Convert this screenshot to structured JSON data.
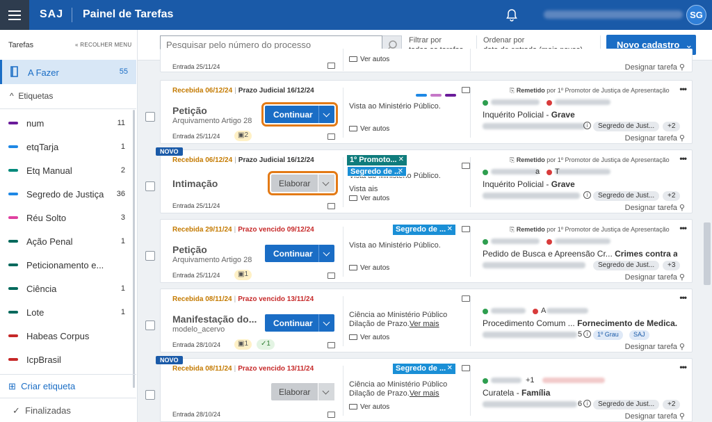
{
  "topbar": {
    "logo": "SAJ",
    "title": "Painel de Tarefas",
    "avatar": "SG"
  },
  "sidebar": {
    "header": "Tarefas",
    "collapse": "RECOLHER MENU",
    "afazer": {
      "label": "A Fazer",
      "count": "55"
    },
    "etiquetas_label": "Etiquetas",
    "tags": [
      {
        "name": "num",
        "count": "11",
        "color": "#6a1b9a"
      },
      {
        "name": "etqTarja",
        "count": "1",
        "color": "#1e88e5"
      },
      {
        "name": "Etq Manual",
        "count": "2",
        "color": "#00897b"
      },
      {
        "name": "Segredo de Justiça",
        "count": "36",
        "color": "#1e88e5"
      },
      {
        "name": "Réu Solto",
        "count": "3",
        "color": "#e040a0"
      },
      {
        "name": "Ação Penal",
        "count": "1",
        "color": "#00695c"
      },
      {
        "name": "Peticionamento e...",
        "count": "",
        "color": "#00695c"
      },
      {
        "name": "Ciência",
        "count": "1",
        "color": "#00695c"
      },
      {
        "name": "Lote",
        "count": "1",
        "color": "#00695c"
      },
      {
        "name": "Habeas Corpus",
        "count": "",
        "color": "#c62828"
      },
      {
        "name": "IcpBrasil",
        "count": "",
        "color": "#c62828"
      }
    ],
    "criar": "Criar etiqueta",
    "finalizadas": "Finalizadas"
  },
  "toolbar": {
    "search_placeholder": "Pesquisar pelo número do processo",
    "filter_label": "Filtrar por",
    "filter_value": "todas as tarefas",
    "order_label": "Ordenar por",
    "order_value": "data de entrada (mais novas)",
    "novo": "Novo cadastro"
  },
  "partial": {
    "entrada": "Entrada 25/11/24",
    "ver": "Ver autos",
    "designar": "Designar tarefa"
  },
  "cards": [
    {
      "recebida": "Recebida 06/12/24",
      "prazo": "Prazo Judicial 16/12/24",
      "tipo": "Petição",
      "sub": "Arquivamento Artigo 28",
      "entrada": "Entrada 25/11/24",
      "badge_y": "2",
      "btn": "Continuar",
      "mov": "Vista ao Ministério Público.",
      "ver": "Ver autos",
      "rem_label": "Remetido",
      "rem_text": " por 1º Promotor de Justiça de Apresentação",
      "classe": "Inquérito Policial - ",
      "assunto": "Grave",
      "chip": "Segredo de Just...",
      "plus": "+2",
      "designar": "Designar tarefa"
    },
    {
      "novo": "NOVO",
      "recebida": "Recebida 06/12/24",
      "prazo": "Prazo Judicial 16/12/24",
      "tipo": "Intimação",
      "entrada": "Entrada 25/11/24",
      "btn": "Elaborar",
      "mov": "Vista ao Ministério Público.",
      "mov2": "Vista ais",
      "ver": "Ver autos",
      "pill1": "1º Promoto...",
      "pill2": "Segredo de ...",
      "rem_label": "Remetido",
      "rem_text": " por 1º Promotor de Justiça de Apresentação",
      "party_tail": "a",
      "party_tail2": "T",
      "classe": "Inquérito Policial - ",
      "assunto": "Grave",
      "chip": "Segredo de Just...",
      "plus": "+2",
      "designar": "Designar tarefa"
    },
    {
      "recebida": "Recebida 29/11/24",
      "prazo": "Prazo vencido 09/12/24",
      "tipo": "Petição",
      "sub": "Arquivamento Artigo 28",
      "entrada": "Entrada 25/11/24",
      "badge_y": "1",
      "btn": "Continuar",
      "mov": "Vista ao Ministério Público.",
      "ver": "Ver autos",
      "pill": "Segredo de ...",
      "rem_label": "Remetido",
      "rem_text": " por 1º Promotor de Justiça de Apresentação",
      "classe": "Pedido de Busca e Apreensão Cr...  ",
      "assunto": "Crimes contra a ...",
      "chip": "Segredo de Just...",
      "plus": "+3",
      "designar": "Designar tarefa"
    },
    {
      "recebida": "Recebida 08/11/24",
      "prazo": "Prazo vencido 13/11/24",
      "tipo": "Manifestação do...",
      "sub": "modelo_acervo",
      "entrada": "Entrada 28/10/24",
      "badge_y": "1",
      "badge_g": "1",
      "btn": "Continuar",
      "mov": "Ciência ao Ministério Público Dilação de Prazo.",
      "mais": "Ver mais",
      "ver": "Ver autos",
      "party_tail": "A",
      "classe": "Procedimento Comum ...  ",
      "assunto": "Fornecimento de Medica...",
      "proc_tail": "5",
      "chip1": "1º Grau",
      "chip2": "SAJ",
      "designar": "Designar tarefa"
    },
    {
      "novo": "NOVO",
      "recebida": "Recebida 08/11/24",
      "prazo": "Prazo vencido 13/11/24",
      "entrada": "Entrada 28/10/24",
      "btn": "Elaborar",
      "mov": "Ciência ao Ministério Público Dilação de Prazo.",
      "mais": "Ver mais",
      "ver": "Ver autos",
      "pill": "Segredo de ...",
      "party_plus": "+1",
      "classe": "Curatela - ",
      "assunto": "Família",
      "proc_tail": "6",
      "chip": "Segredo de Just...",
      "plus": "+2",
      "designar": "Designar tarefa"
    }
  ]
}
